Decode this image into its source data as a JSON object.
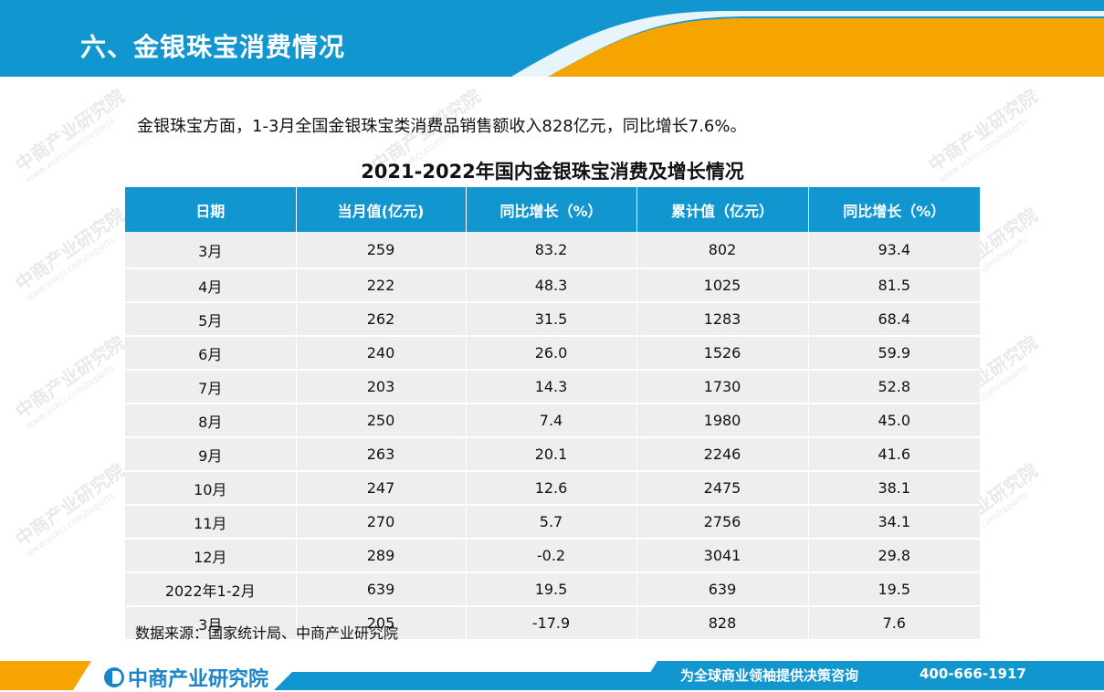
{
  "header": {
    "title": "六、金银珠宝消费情况"
  },
  "intro": "金银珠宝方面，1-3月全国金银珠宝类消费品销售额收入828亿元，同比增长7.6%。",
  "table": {
    "title": "2021-2022年国内金银珠宝消费及增长情况",
    "columns": [
      "日期",
      "当月值(亿元)",
      "同比增长（%）",
      "累计值（亿元）",
      "同比增长（%）"
    ],
    "rows": [
      [
        "3月",
        "259",
        "83.2",
        "802",
        "93.4"
      ],
      [
        "4月",
        "222",
        "48.3",
        "1025",
        "81.5"
      ],
      [
        "5月",
        "262",
        "31.5",
        "1283",
        "68.4"
      ],
      [
        "6月",
        "240",
        "26.0",
        "1526",
        "59.9"
      ],
      [
        "7月",
        "203",
        "14.3",
        "1730",
        "52.8"
      ],
      [
        "8月",
        "250",
        "7.4",
        "1980",
        "45.0"
      ],
      [
        "9月",
        "263",
        "20.1",
        "2246",
        "41.6"
      ],
      [
        "10月",
        "247",
        "12.6",
        "2475",
        "38.1"
      ],
      [
        "11月",
        "270",
        "5.7",
        "2756",
        "34.1"
      ],
      [
        "12月",
        "289",
        "-0.2",
        "3041",
        "29.8"
      ],
      [
        "2022年1-2月",
        "639",
        "19.5",
        "639",
        "19.5"
      ],
      [
        "3月",
        "205",
        "-17.9",
        "828",
        "7.6"
      ]
    ]
  },
  "source": "数据来源：国家统计局、中商产业研究院",
  "watermark": {
    "text": "中商产业研究院",
    "sub": "www.askci.com/reports"
  },
  "footer": {
    "logo": "中商产业研究院",
    "slogan": "为全球商业领袖提供决策咨询",
    "phone": "400-666-1917"
  },
  "colors": {
    "blue": "#1296d0",
    "orange": "#f5a400",
    "row_bg": "#eeeeee"
  }
}
